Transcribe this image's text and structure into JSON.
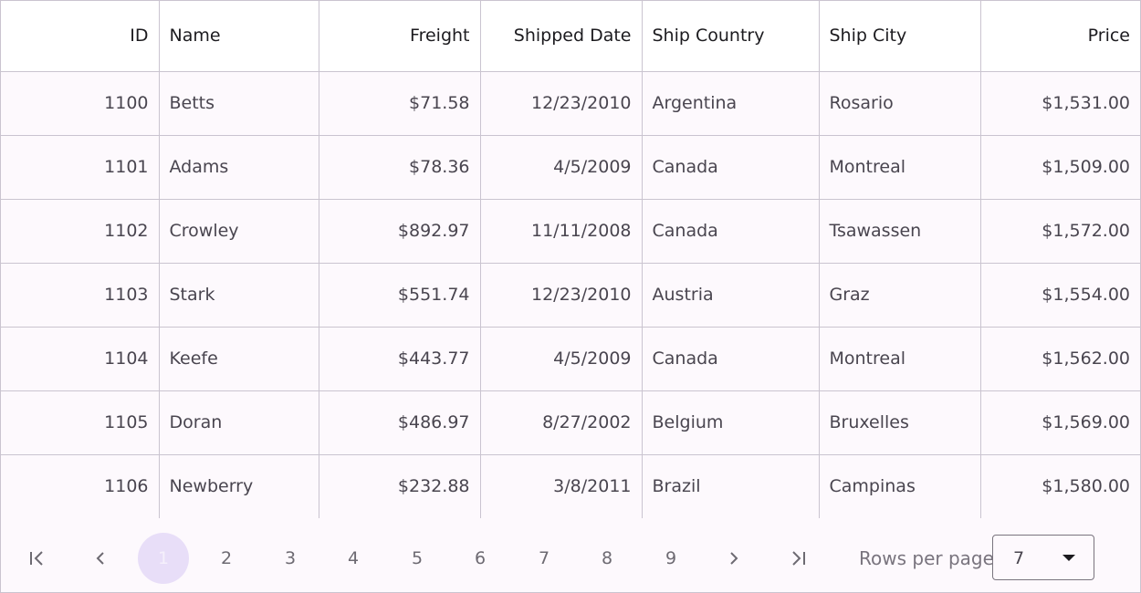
{
  "grid": {
    "columns": {
      "id": "ID",
      "name": "Name",
      "freight": "Freight",
      "shipped_date": "Shipped Date",
      "ship_country": "Ship Country",
      "ship_city": "Ship City",
      "price": "Price"
    },
    "rows": [
      {
        "id": "1100",
        "name": "Betts",
        "freight": "$71.58",
        "shipped_date": "12/23/2010",
        "ship_country": "Argentina",
        "ship_city": "Rosario",
        "price": "$1,531.00"
      },
      {
        "id": "1101",
        "name": "Adams",
        "freight": "$78.36",
        "shipped_date": "4/5/2009",
        "ship_country": "Canada",
        "ship_city": "Montreal",
        "price": "$1,509.00"
      },
      {
        "id": "1102",
        "name": "Crowley",
        "freight": "$892.97",
        "shipped_date": "11/11/2008",
        "ship_country": "Canada",
        "ship_city": "Tsawassen",
        "price": "$1,572.00"
      },
      {
        "id": "1103",
        "name": "Stark",
        "freight": "$551.74",
        "shipped_date": "12/23/2010",
        "ship_country": "Austria",
        "ship_city": "Graz",
        "price": "$1,554.00"
      },
      {
        "id": "1104",
        "name": "Keefe",
        "freight": "$443.77",
        "shipped_date": "4/5/2009",
        "ship_country": "Canada",
        "ship_city": "Montreal",
        "price": "$1,562.00"
      },
      {
        "id": "1105",
        "name": "Doran",
        "freight": "$486.97",
        "shipped_date": "8/27/2002",
        "ship_country": "Belgium",
        "ship_city": "Bruxelles",
        "price": "$1,569.00"
      },
      {
        "id": "1106",
        "name": "Newberry",
        "freight": "$232.88",
        "shipped_date": "3/8/2011",
        "ship_country": "Brazil",
        "ship_city": "Campinas",
        "price": "$1,580.00"
      }
    ]
  },
  "pager": {
    "first_icon": "first-page-icon",
    "prev_icon": "chevron-left-icon",
    "next_icon": "chevron-right-icon",
    "last_icon": "last-page-icon",
    "pages": [
      "1",
      "2",
      "3",
      "4",
      "5",
      "6",
      "7",
      "8",
      "9"
    ],
    "current_page": "1",
    "rows_per_page_label": "Rows per page",
    "rows_per_page_value": "7",
    "dropdown_icon": "caret-down-icon"
  },
  "colors": {
    "accent": "#e8def8",
    "border": "#cac4d0",
    "background": "#fdf9fd"
  }
}
